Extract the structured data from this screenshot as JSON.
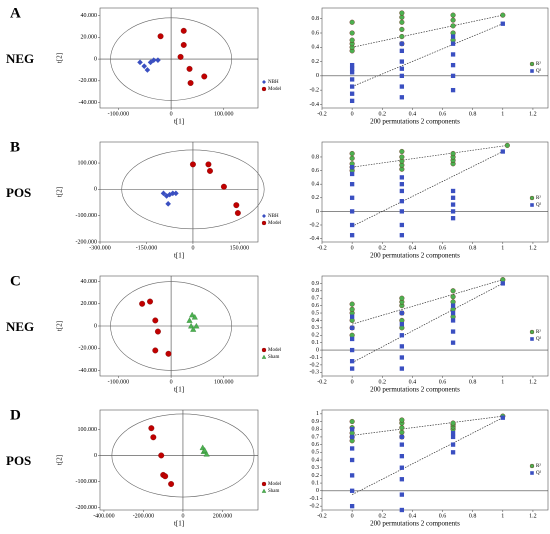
{
  "chart_data": [
    {
      "type": "scatter",
      "panel": "A",
      "mode": "NEG",
      "xlabel": "t[1]",
      "ylabel": "t[2]",
      "xlim": [
        -135,
        165
      ],
      "ylim": [
        -45,
        47
      ],
      "xticks": [
        {
          "value": -100,
          "label": "-100.000"
        },
        0,
        {
          "value": 100,
          "label": "100.000"
        }
      ],
      "yticks": [
        {
          "value": -40,
          "label": "-40.000"
        },
        {
          "value": -20,
          "label": "-20.000"
        },
        0,
        {
          "value": 20,
          "label": "20.000"
        },
        {
          "value": 40,
          "label": "40.000"
        }
      ],
      "ellipse": [
        115,
        38
      ],
      "series": [
        {
          "name": "NBH",
          "color": "#3a4fc1",
          "marker": "diamond",
          "x": [
            -59,
            -51,
            -45,
            -39,
            -33,
            -25
          ],
          "y": [
            -3,
            -6.5,
            -10,
            -3,
            -1,
            -1
          ]
        },
        {
          "name": "Model",
          "color": "#c00000",
          "marker": "circle",
          "x": [
            -20,
            24,
            24,
            18,
            35,
            37,
            63
          ],
          "y": [
            21,
            26,
            13,
            2,
            -9,
            -22,
            -16
          ]
        }
      ]
    },
    {
      "type": "scatter",
      "xlabel": "200 permutations 2 components",
      "xlim": [
        -0.2,
        1.3
      ],
      "ylim": [
        -0.45,
        0.95
      ],
      "xticks": [
        -0.2,
        0,
        0.2,
        0.4,
        0.6,
        0.8,
        1,
        1.2
      ],
      "yticks": [
        -0.4,
        -0.2,
        0,
        0.2,
        0.4,
        0.6,
        0.8
      ],
      "series": [
        {
          "name": "R²",
          "color": "#4cb050",
          "marker": "circle",
          "x": [
            0,
            0,
            0,
            0,
            0,
            0,
            0.33,
            0.33,
            0.33,
            0.33,
            0.33,
            0.33,
            0.67,
            0.67,
            0.67,
            0.67,
            0.67,
            1
          ],
          "y": [
            0.35,
            0.4,
            0.45,
            0.5,
            0.6,
            0.75,
            0.45,
            0.55,
            0.65,
            0.75,
            0.82,
            0.88,
            0.5,
            0.6,
            0.7,
            0.78,
            0.85,
            0.85
          ]
        },
        {
          "name": "Q²",
          "color": "#3a4fc1",
          "marker": "square",
          "x": [
            0,
            0,
            0,
            0,
            0,
            0,
            0,
            0.33,
            0.33,
            0.33,
            0.33,
            0.33,
            0.33,
            0.33,
            0.67,
            0.67,
            0.67,
            0.67,
            0.67,
            0.67,
            1
          ],
          "y": [
            -0.35,
            -0.25,
            -0.15,
            -0.05,
            0.05,
            0.1,
            0.15,
            -0.3,
            -0.15,
            0,
            0.1,
            0.2,
            0.35,
            0.45,
            -0.2,
            0,
            0.15,
            0.3,
            0.45,
            0.55,
            0.73
          ]
        }
      ],
      "lines": [
        {
          "x": [
            0,
            1
          ],
          "y": [
            0.4,
            0.85
          ]
        },
        {
          "x": [
            0,
            1
          ],
          "y": [
            -0.15,
            0.73
          ]
        }
      ]
    },
    {
      "type": "scatter",
      "panel": "B",
      "mode": "POS",
      "xlabel": "t[1]",
      "ylabel": "t[2]",
      "xlim": [
        -300,
        210
      ],
      "ylim": [
        -200,
        180
      ],
      "xticks": [
        {
          "value": -300,
          "label": "-300.000"
        },
        {
          "value": -150,
          "label": "-150.000"
        },
        0,
        {
          "value": 150,
          "label": "150.000"
        }
      ],
      "yticks": [
        {
          "value": -200,
          "label": "-200.000"
        },
        {
          "value": -100,
          "label": "-100.000"
        },
        0,
        {
          "value": 100,
          "label": "100.000"
        }
      ],
      "ellipse": [
        230,
        150
      ],
      "series": [
        {
          "name": "NBH",
          "color": "#3a4fc1",
          "marker": "diamond",
          "x": [
            -95,
            -85,
            -75,
            -65,
            -55,
            -80
          ],
          "y": [
            -15,
            -25,
            -20,
            -15,
            -15,
            -55
          ]
        },
        {
          "name": "Model",
          "color": "#c00000",
          "marker": "circle",
          "x": [
            0,
            50,
            55,
            100,
            140,
            145
          ],
          "y": [
            95,
            95,
            70,
            10,
            -60,
            -90
          ]
        }
      ]
    },
    {
      "type": "scatter",
      "xlabel": "200 permutations 2 components",
      "xlim": [
        -0.2,
        1.3
      ],
      "ylim": [
        -0.45,
        1.02
      ],
      "xticks": [
        -0.2,
        0,
        0.2,
        0.4,
        0.6,
        0.8,
        1,
        1.2
      ],
      "yticks": [
        -0.4,
        -0.2,
        0,
        0.2,
        0.4,
        0.6,
        0.8
      ],
      "series": [
        {
          "name": "R²",
          "color": "#4cb050",
          "marker": "circle",
          "x": [
            0,
            0,
            0,
            0,
            0,
            0.33,
            0.33,
            0.33,
            0.33,
            0.33,
            0.67,
            0.67,
            0.67,
            0.67,
            1.03
          ],
          "y": [
            0.6,
            0.65,
            0.7,
            0.78,
            0.85,
            0.62,
            0.68,
            0.74,
            0.8,
            0.88,
            0.7,
            0.75,
            0.8,
            0.85,
            0.97
          ]
        },
        {
          "name": "Q²",
          "color": "#3a4fc1",
          "marker": "square",
          "x": [
            0,
            0,
            0,
            0,
            0,
            0,
            0,
            0.33,
            0.33,
            0.33,
            0.33,
            0.33,
            0.33,
            0.33,
            0.67,
            0.67,
            0.67,
            0.67,
            0.67,
            1
          ],
          "y": [
            -0.35,
            -0.2,
            0,
            0.2,
            0.4,
            0.55,
            0.65,
            -0.35,
            -0.2,
            0,
            0.15,
            0.3,
            0.4,
            0.5,
            -0.1,
            0,
            0.1,
            0.2,
            0.3,
            0.88
          ]
        }
      ],
      "lines": [
        {
          "x": [
            0,
            1.03
          ],
          "y": [
            0.65,
            0.97
          ]
        },
        {
          "x": [
            0,
            1
          ],
          "y": [
            -0.22,
            0.88
          ]
        }
      ]
    },
    {
      "type": "scatter",
      "panel": "C",
      "mode": "NEG",
      "xlabel": "t[1]",
      "ylabel": "t[2]",
      "xlim": [
        -135,
        165
      ],
      "ylim": [
        -45,
        45
      ],
      "xticks": [
        {
          "value": -100,
          "label": "-100.000"
        },
        0,
        {
          "value": 100,
          "label": "100.000"
        }
      ],
      "yticks": [
        {
          "value": -40,
          "label": "-40.000"
        },
        {
          "value": -20,
          "label": "-20.000"
        },
        0,
        {
          "value": 20,
          "label": "20.000"
        },
        {
          "value": 40,
          "label": "40.000"
        }
      ],
      "ellipse": [
        115,
        40
      ],
      "series": [
        {
          "name": "Model",
          "color": "#c00000",
          "marker": "circle",
          "x": [
            -55,
            -40,
            -30,
            -25,
            -30,
            -5
          ],
          "y": [
            20,
            22,
            5,
            -5,
            -22,
            -25
          ]
        },
        {
          "name": "Sham",
          "color": "#4cb050",
          "marker": "triangle",
          "x": [
            40,
            45,
            35,
            38,
            48,
            42
          ],
          "y": [
            10,
            8,
            5,
            0,
            0,
            -3
          ]
        }
      ]
    },
    {
      "type": "scatter",
      "xlabel": "200 permutations 2 components",
      "xlim": [
        -0.2,
        1.3
      ],
      "ylim": [
        -0.35,
        1.0
      ],
      "xticks": [
        -0.2,
        0,
        0.2,
        0.4,
        0.6,
        0.8,
        1,
        1.2
      ],
      "yticks": [
        -0.3,
        -0.2,
        -0.1,
        0,
        0.1,
        0.2,
        0.3,
        0.4,
        0.5,
        0.6,
        0.7,
        0.8,
        0.9
      ],
      "series": [
        {
          "name": "R²",
          "color": "#4cb050",
          "marker": "circle",
          "x": [
            0,
            0,
            0,
            0,
            0,
            0,
            0.33,
            0.33,
            0.33,
            0.33,
            0.33,
            0.33,
            0.67,
            0.67,
            0.67,
            0.67,
            0.67,
            1
          ],
          "y": [
            0.2,
            0.3,
            0.4,
            0.5,
            0.55,
            0.62,
            0.3,
            0.4,
            0.5,
            0.6,
            0.65,
            0.7,
            0.45,
            0.55,
            0.65,
            0.72,
            0.8,
            0.95
          ]
        },
        {
          "name": "Q²",
          "color": "#3a4fc1",
          "marker": "square",
          "x": [
            0,
            0,
            0,
            0,
            0,
            0,
            0.33,
            0.33,
            0.33,
            0.33,
            0.33,
            0.33,
            0.67,
            0.67,
            0.67,
            0.67,
            0.67,
            1
          ],
          "y": [
            -0.25,
            -0.15,
            0,
            0.15,
            0.3,
            0.45,
            -0.25,
            -0.1,
            0.05,
            0.2,
            0.35,
            0.5,
            0.1,
            0.25,
            0.4,
            0.5,
            0.6,
            0.9
          ]
        }
      ],
      "lines": [
        {
          "x": [
            0,
            1
          ],
          "y": [
            0.35,
            0.95
          ]
        },
        {
          "x": [
            0,
            1
          ],
          "y": [
            -0.17,
            0.9
          ]
        }
      ]
    },
    {
      "type": "scatter",
      "panel": "D",
      "mode": "POS",
      "xlabel": "t[1]",
      "ylabel": "t[2]",
      "xlim": [
        -420,
        380
      ],
      "ylim": [
        -210,
        175
      ],
      "xticks": [
        {
          "value": -400,
          "label": "-400.000"
        },
        {
          "value": -200,
          "label": "-200.000"
        },
        0,
        {
          "value": 200,
          "label": "200.000"
        }
      ],
      "yticks": [
        {
          "value": -200,
          "label": "-200.000"
        },
        {
          "value": -100,
          "label": "-100.000"
        },
        0,
        {
          "value": 100,
          "label": "100.000"
        }
      ],
      "ellipse": [
        360,
        160
      ],
      "series": [
        {
          "name": "Model",
          "color": "#c00000",
          "marker": "circle",
          "x": [
            -160,
            -150,
            -110,
            -100,
            -90,
            -60
          ],
          "y": [
            105,
            70,
            0,
            -75,
            -80,
            -110
          ]
        },
        {
          "name": "Sham",
          "color": "#4cb050",
          "marker": "triangle",
          "x": [
            100,
            105,
            120,
            110
          ],
          "y": [
            30,
            15,
            5,
            20
          ]
        }
      ]
    },
    {
      "type": "scatter",
      "xlabel": "200 permutations 2 components",
      "xlim": [
        -0.2,
        1.3
      ],
      "ylim": [
        -0.25,
        1.05
      ],
      "xticks": [
        -0.2,
        0,
        0.2,
        0.4,
        0.6,
        0.8,
        1,
        1.2
      ],
      "yticks": [
        -0.2,
        -0.1,
        0,
        0.1,
        0.2,
        0.3,
        0.4,
        0.5,
        0.6,
        0.7,
        0.8,
        0.9,
        1
      ],
      "series": [
        {
          "name": "R²",
          "color": "#4cb050",
          "marker": "circle",
          "x": [
            0,
            0,
            0,
            0,
            0,
            0.33,
            0.33,
            0.33,
            0.33,
            0.33,
            0.67,
            0.67,
            0.67,
            0.67,
            1
          ],
          "y": [
            0.65,
            0.7,
            0.75,
            0.82,
            0.9,
            0.7,
            0.76,
            0.82,
            0.88,
            0.92,
            0.8,
            0.83,
            0.86,
            0.88,
            0.97
          ]
        },
        {
          "name": "Q²",
          "color": "#3a4fc1",
          "marker": "square",
          "x": [
            0,
            0,
            0,
            0,
            0,
            0,
            0,
            0.33,
            0.33,
            0.33,
            0.33,
            0.33,
            0.33,
            0.33,
            0.67,
            0.67,
            0.67,
            0.67,
            1
          ],
          "y": [
            -0.2,
            0,
            0.2,
            0.4,
            0.55,
            0.7,
            0.8,
            -0.25,
            -0.05,
            0.15,
            0.3,
            0.45,
            0.6,
            0.7,
            0.5,
            0.6,
            0.7,
            0.75,
            0.95
          ]
        }
      ],
      "lines": [
        {
          "x": [
            0,
            1
          ],
          "y": [
            0.72,
            0.97
          ]
        },
        {
          "x": [
            0,
            1
          ],
          "y": [
            -0.05,
            0.95
          ]
        }
      ]
    }
  ]
}
